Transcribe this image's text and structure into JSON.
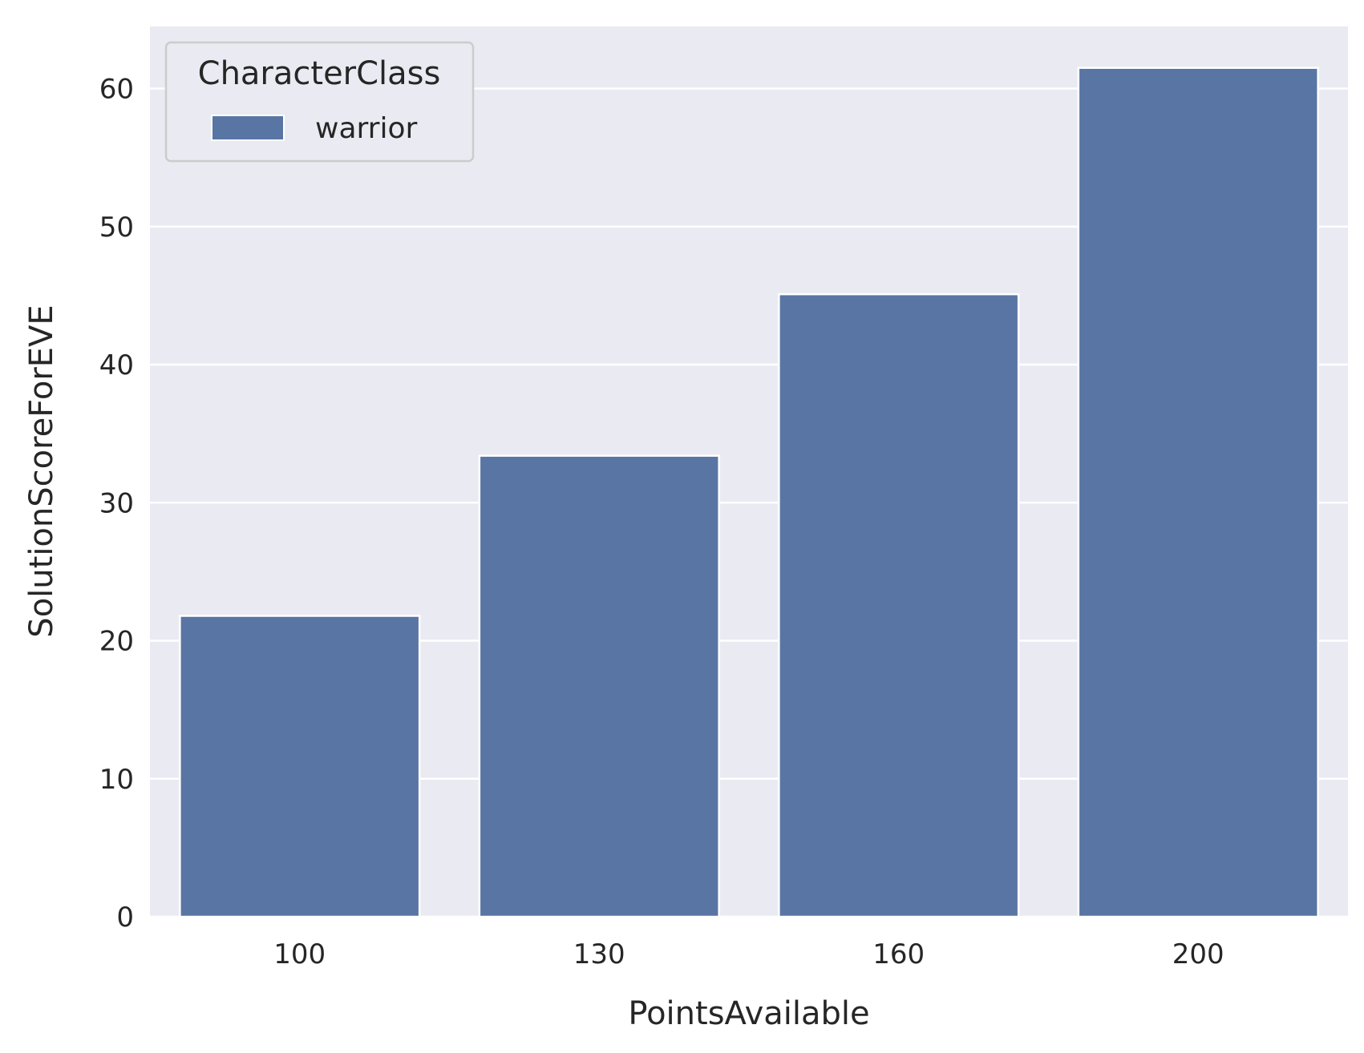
{
  "chart_data": {
    "type": "bar",
    "categories": [
      "100",
      "130",
      "160",
      "200"
    ],
    "series": [
      {
        "name": "warrior",
        "values": [
          21.8,
          33.4,
          45.1,
          61.5
        ]
      }
    ],
    "xlabel": "PointsAvailable",
    "ylabel": "SolutionScoreForEVE",
    "ylim": [
      0,
      64.5
    ],
    "yticks": [
      0,
      10,
      20,
      30,
      40,
      50,
      60
    ],
    "grid": true,
    "legend": {
      "title": "CharacterClass",
      "placement": "top-left"
    },
    "colors": {
      "bar": "#5975a4",
      "plot_background": "#eaeaf2",
      "grid": "#ffffff"
    }
  }
}
